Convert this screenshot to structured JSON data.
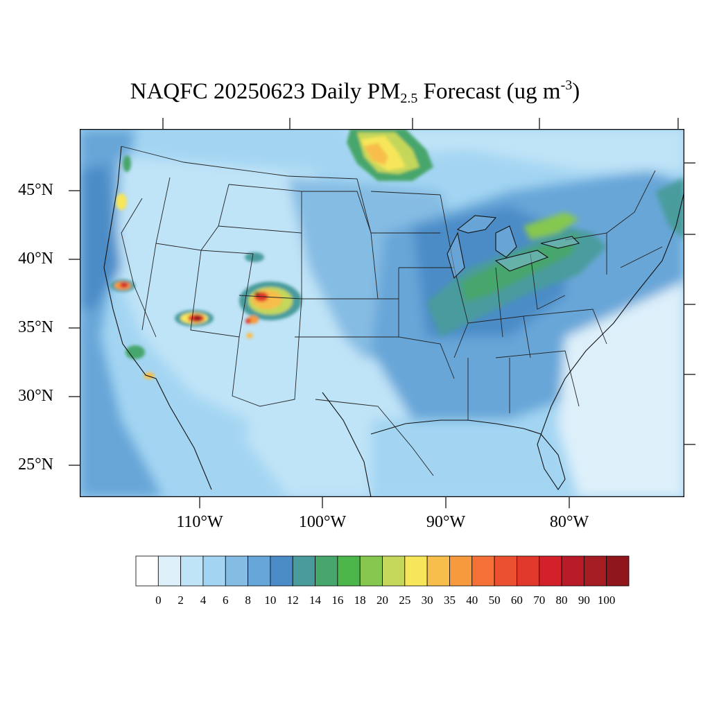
{
  "title": {
    "prefix": "NAQFC 20250623 Daily PM",
    "subscript": "2.5",
    "suffix": " Forecast (ug m",
    "superscript": "-3",
    "close": ")"
  },
  "map": {
    "projection": "lambert-conformal",
    "region": "CONUS",
    "variable": "PM2.5 daily mean",
    "lat_labels": [
      "45°N",
      "40°N",
      "35°N",
      "30°N",
      "25°N"
    ],
    "lon_labels": [
      "110°W",
      "100°W",
      "90°W",
      "80°W"
    ],
    "features": [
      "coastlines",
      "state-boundaries",
      "country-boundaries",
      "great-lakes"
    ],
    "hotspots": [
      {
        "location": "Northern Minnesota / Ontario border",
        "level": "25-40"
      },
      {
        "location": "Southern Colorado",
        "level": "40-100"
      },
      {
        "location": "Northern Arizona",
        "level": "40-100"
      },
      {
        "location": "California / Nevada border",
        "level": "40-100"
      },
      {
        "location": "Southern California",
        "level": "30-40"
      },
      {
        "location": "Ohio Valley to New England",
        "level": "16-20"
      }
    ]
  },
  "colorbar": {
    "labels": [
      "0",
      "2",
      "4",
      "6",
      "8",
      "10",
      "12",
      "14",
      "16",
      "18",
      "20",
      "25",
      "30",
      "35",
      "40",
      "50",
      "60",
      "70",
      "80",
      "90",
      "100"
    ],
    "colors": [
      "#ffffff",
      "#ddf0fa",
      "#bfe3f7",
      "#a3d5f2",
      "#85bce3",
      "#67a6d8",
      "#4b8cc7",
      "#4a9c9c",
      "#46a66c",
      "#4db64a",
      "#86c750",
      "#c4d75a",
      "#f7e65a",
      "#f7be4b",
      "#f79a3e",
      "#f47036",
      "#eb5131",
      "#e0392c",
      "#d4202b",
      "#b81b27",
      "#a51c22",
      "#8f171c"
    ]
  },
  "palette": {
    "ocean": "#a3d5f2",
    "land_base": "#85bce3",
    "background": "#ffffff"
  }
}
